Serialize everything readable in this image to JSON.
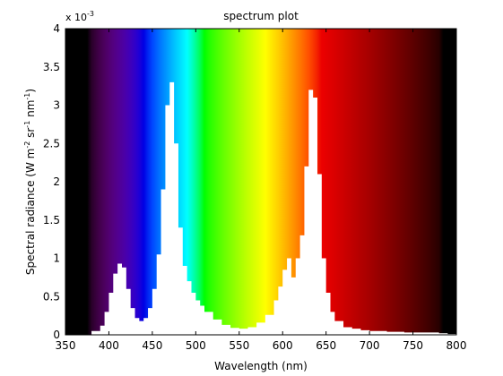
{
  "chart_data": {
    "type": "area",
    "title": "spectrum plot",
    "xlabel": "Wavelength (nm)",
    "ylabel": "Spectral radiance (W m",
    "ylabel_parts": [
      "Spectral radiance (W m",
      "-2",
      " sr",
      "-1",
      " nm",
      "-1",
      ")"
    ],
    "y_exponent_label": "x 10",
    "y_exponent_power": "-3",
    "xlim": [
      350,
      800
    ],
    "ylim": [
      0,
      4
    ],
    "x_ticks": [
      350,
      400,
      450,
      500,
      550,
      600,
      650,
      700,
      750,
      800
    ],
    "x_tick_labels": [
      "350",
      "400",
      "450",
      "500",
      "550",
      "600",
      "650",
      "700",
      "750",
      "800"
    ],
    "y_ticks": [
      0,
      0.5,
      1,
      1.5,
      2,
      2.5,
      3,
      3.5,
      4
    ],
    "y_tick_labels": [
      "0",
      "0.5",
      "1",
      "1.5",
      "2",
      "2.5",
      "3",
      "3.5",
      "4"
    ],
    "grid": false,
    "fill_above_curve": "wavelength color (visible spectrum)",
    "fill_below_curve": "#ffffff",
    "x": [
      380,
      390,
      395,
      400,
      405,
      410,
      415,
      420,
      425,
      430,
      435,
      440,
      445,
      450,
      455,
      460,
      465,
      470,
      475,
      480,
      485,
      490,
      495,
      500,
      505,
      510,
      520,
      530,
      540,
      550,
      560,
      570,
      580,
      590,
      595,
      600,
      605,
      610,
      615,
      620,
      625,
      630,
      635,
      640,
      645,
      650,
      655,
      660,
      670,
      680,
      690,
      700,
      720,
      740,
      760,
      780,
      790,
      800
    ],
    "y": [
      0.05,
      0.12,
      0.3,
      0.55,
      0.8,
      0.93,
      0.88,
      0.6,
      0.35,
      0.22,
      0.18,
      0.22,
      0.35,
      0.6,
      1.05,
      1.9,
      3.0,
      3.3,
      2.5,
      1.4,
      0.9,
      0.7,
      0.55,
      0.45,
      0.38,
      0.3,
      0.2,
      0.13,
      0.09,
      0.08,
      0.1,
      0.16,
      0.26,
      0.45,
      0.63,
      0.85,
      1.0,
      0.75,
      1.0,
      1.3,
      2.2,
      3.2,
      3.1,
      2.1,
      1.0,
      0.55,
      0.3,
      0.18,
      0.1,
      0.08,
      0.06,
      0.05,
      0.04,
      0.03,
      0.03,
      0.02,
      0.01,
      0.01
    ]
  }
}
